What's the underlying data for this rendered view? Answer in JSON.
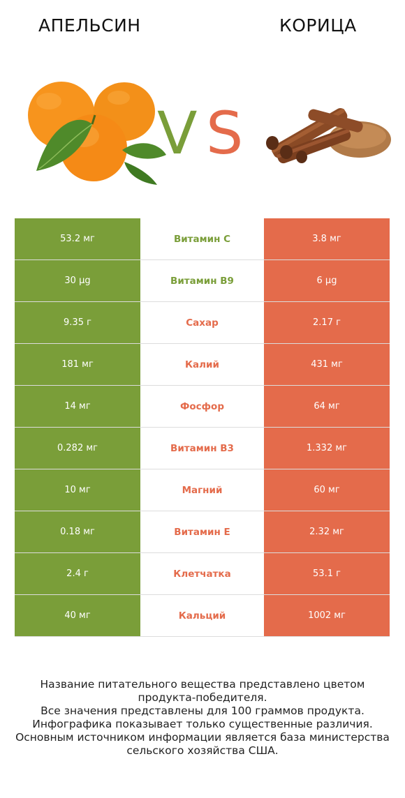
{
  "header": {
    "left": "АПЕЛЬСИН",
    "right": "КОРИЦА",
    "vs_v": "V",
    "vs_s": "S"
  },
  "colors": {
    "left": "#7a9e39",
    "right": "#e46b4b"
  },
  "rows": [
    {
      "left": "53.2 мг",
      "nutrient": "Витамин C",
      "right": "3.8 мг",
      "winner": "left"
    },
    {
      "left": "30 µg",
      "nutrient": "Витамин B9",
      "right": "6 µg",
      "winner": "left"
    },
    {
      "left": "9.35 г",
      "nutrient": "Сахар",
      "right": "2.17 г",
      "winner": "right"
    },
    {
      "left": "181 мг",
      "nutrient": "Калий",
      "right": "431 мг",
      "winner": "right"
    },
    {
      "left": "14 мг",
      "nutrient": "Фосфор",
      "right": "64 мг",
      "winner": "right"
    },
    {
      "left": "0.282 мг",
      "nutrient": "Витамин B3",
      "right": "1.332 мг",
      "winner": "right"
    },
    {
      "left": "10 мг",
      "nutrient": "Магний",
      "right": "60 мг",
      "winner": "right"
    },
    {
      "left": "0.18 мг",
      "nutrient": "Витамин E",
      "right": "2.32 мг",
      "winner": "right"
    },
    {
      "left": "2.4 г",
      "nutrient": "Клетчатка",
      "right": "53.1 г",
      "winner": "right"
    },
    {
      "left": "40 мг",
      "nutrient": "Кальций",
      "right": "1002 мг",
      "winner": "right"
    }
  ],
  "footnote": [
    "Название питательного вещества представлено цветом",
    "продукта-победителя.",
    "Все значения представлены для 100 граммов продукта.",
    "Инфографика показывает только существенные различия.",
    "Основным источником информации является база министерства",
    "сельского хозяйства США."
  ]
}
